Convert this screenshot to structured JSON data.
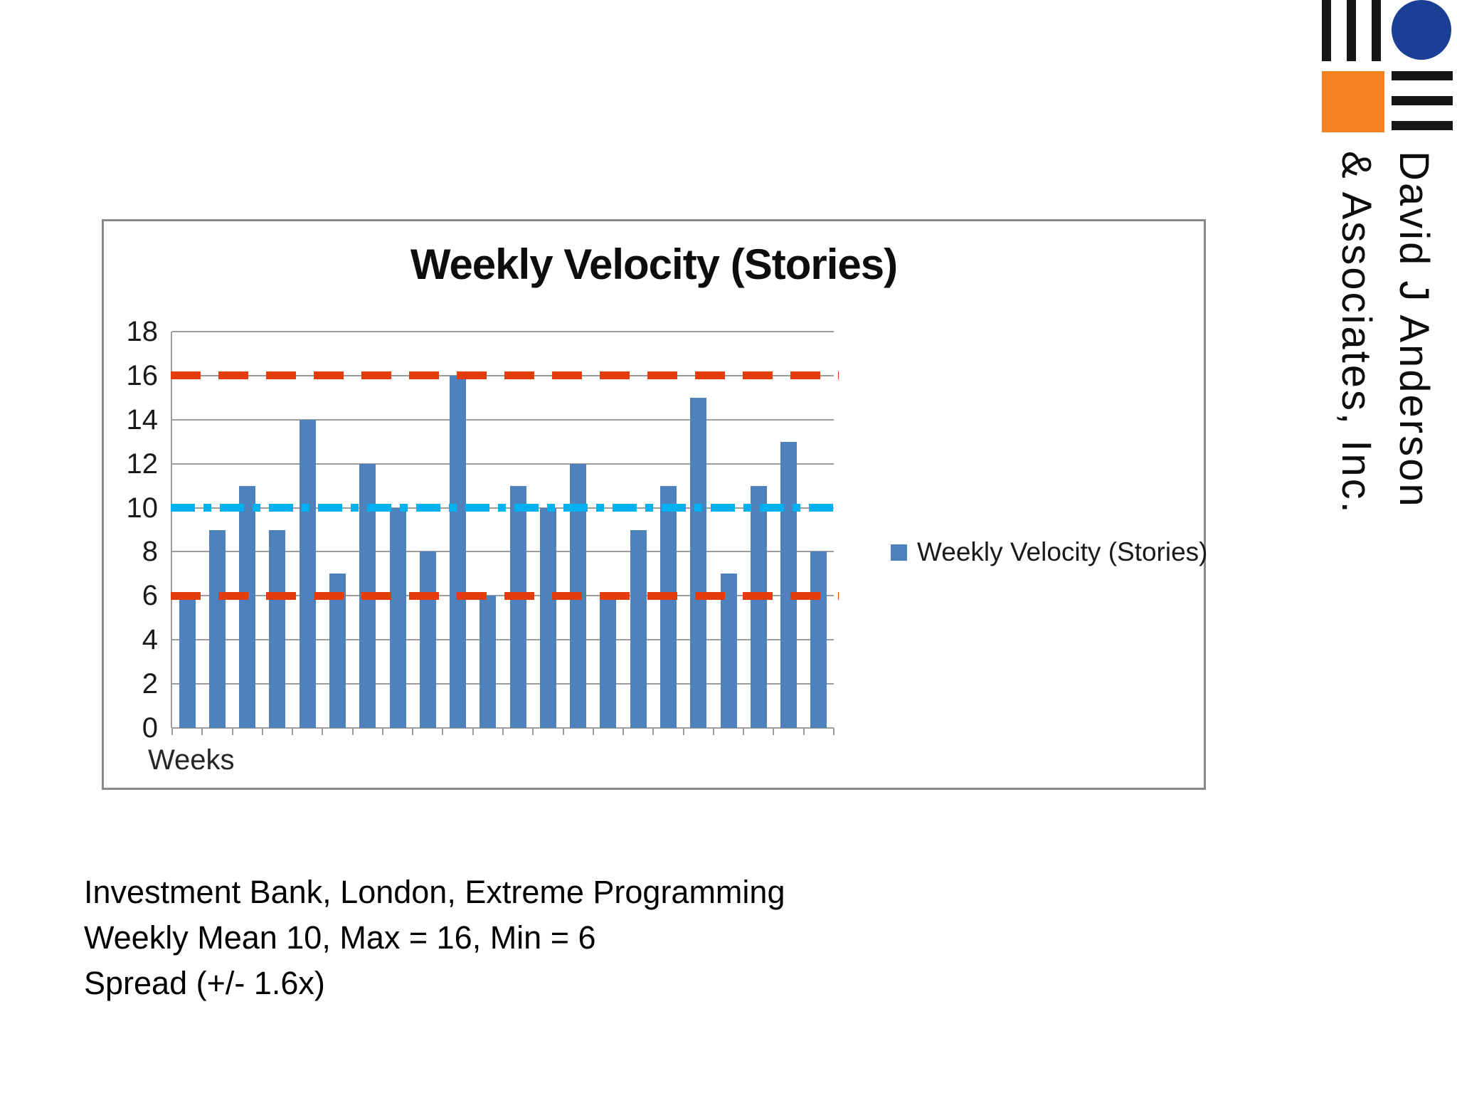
{
  "chart_data": {
    "type": "bar",
    "title": "Weekly Velocity (Stories)",
    "xlabel": "Weeks",
    "ylabel": "",
    "categories_note": "22 consecutive weeks, unlabeled on axis",
    "values": [
      6,
      9,
      11,
      9,
      14,
      7,
      12,
      10,
      8,
      16,
      6,
      11,
      10,
      12,
      6,
      9,
      11,
      15,
      7,
      11,
      13,
      8
    ],
    "ylim": [
      0,
      18
    ],
    "yticks": [
      0,
      2,
      4,
      6,
      8,
      10,
      12,
      14,
      16,
      18
    ],
    "grid": "horizontal",
    "bar_color": "#4F81BD",
    "ref_lines": [
      {
        "name": "max",
        "value": 16,
        "color": "#E43D0C",
        "style": "dashed"
      },
      {
        "name": "mean",
        "value": 10,
        "color": "#00B0F0",
        "style": "dash-dot"
      },
      {
        "name": "min",
        "value": 6,
        "color": "#E43D0C",
        "style": "dashed"
      }
    ],
    "legend": {
      "label": "Weekly Velocity (Stories)",
      "position": "right",
      "swatch_color": "#4F81BD"
    }
  },
  "caption": {
    "line1": "Investment Bank, London, Extreme Programming",
    "line2": "Weekly Mean 10, Max = 16, Min = 6",
    "line3": "Spread (+/- 1.6x)"
  },
  "logo": {
    "company_line1": "David J Anderson",
    "company_line2": "& Associates, Inc.",
    "colors": {
      "navy": "#1B3F94",
      "orange": "#F58220",
      "bars": "#161616"
    }
  }
}
